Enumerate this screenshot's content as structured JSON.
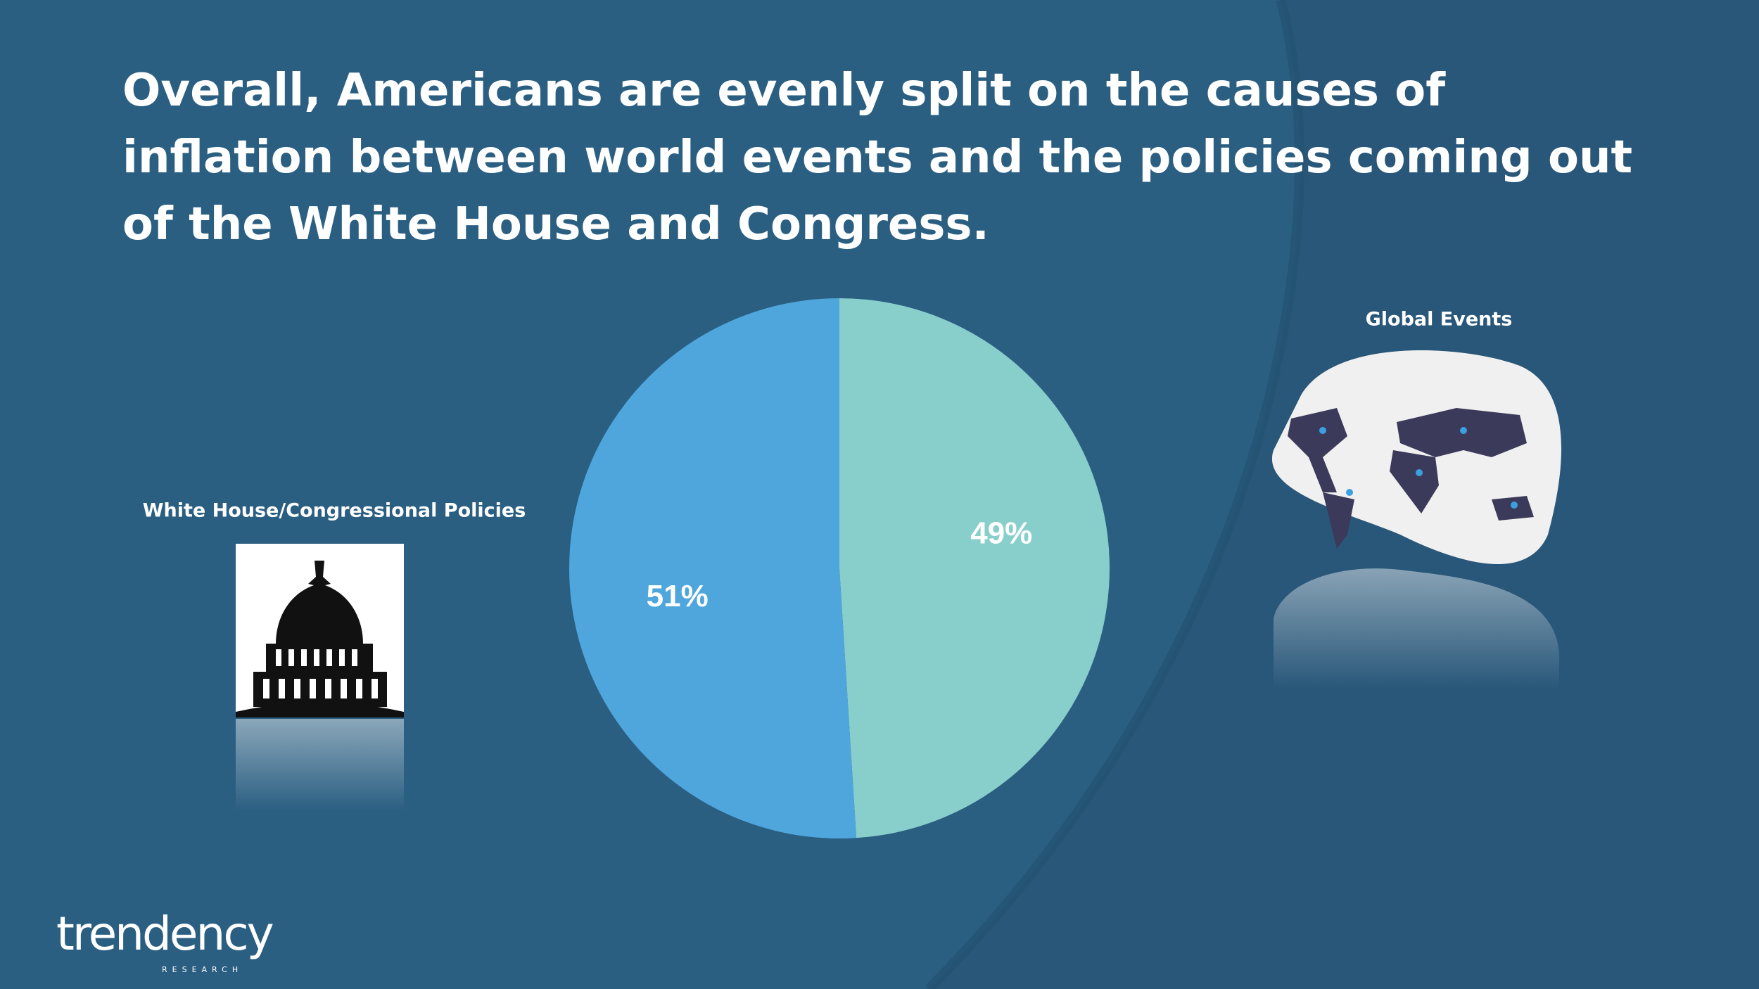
{
  "chart_data": {
    "type": "pie",
    "title": "Overall, Americans are evenly split on the causes of inflation between world events and the policies coming out of the White House and Congress.",
    "categories": [
      "Global Events",
      "White House/Congressional Policies"
    ],
    "values": [
      49,
      51
    ],
    "value_labels": [
      "49%",
      "51%"
    ],
    "colors": [
      "#88cfcc",
      "#4fa6dc"
    ]
  },
  "logo": {
    "name": "trendency",
    "tagline": "RESEARCH"
  }
}
